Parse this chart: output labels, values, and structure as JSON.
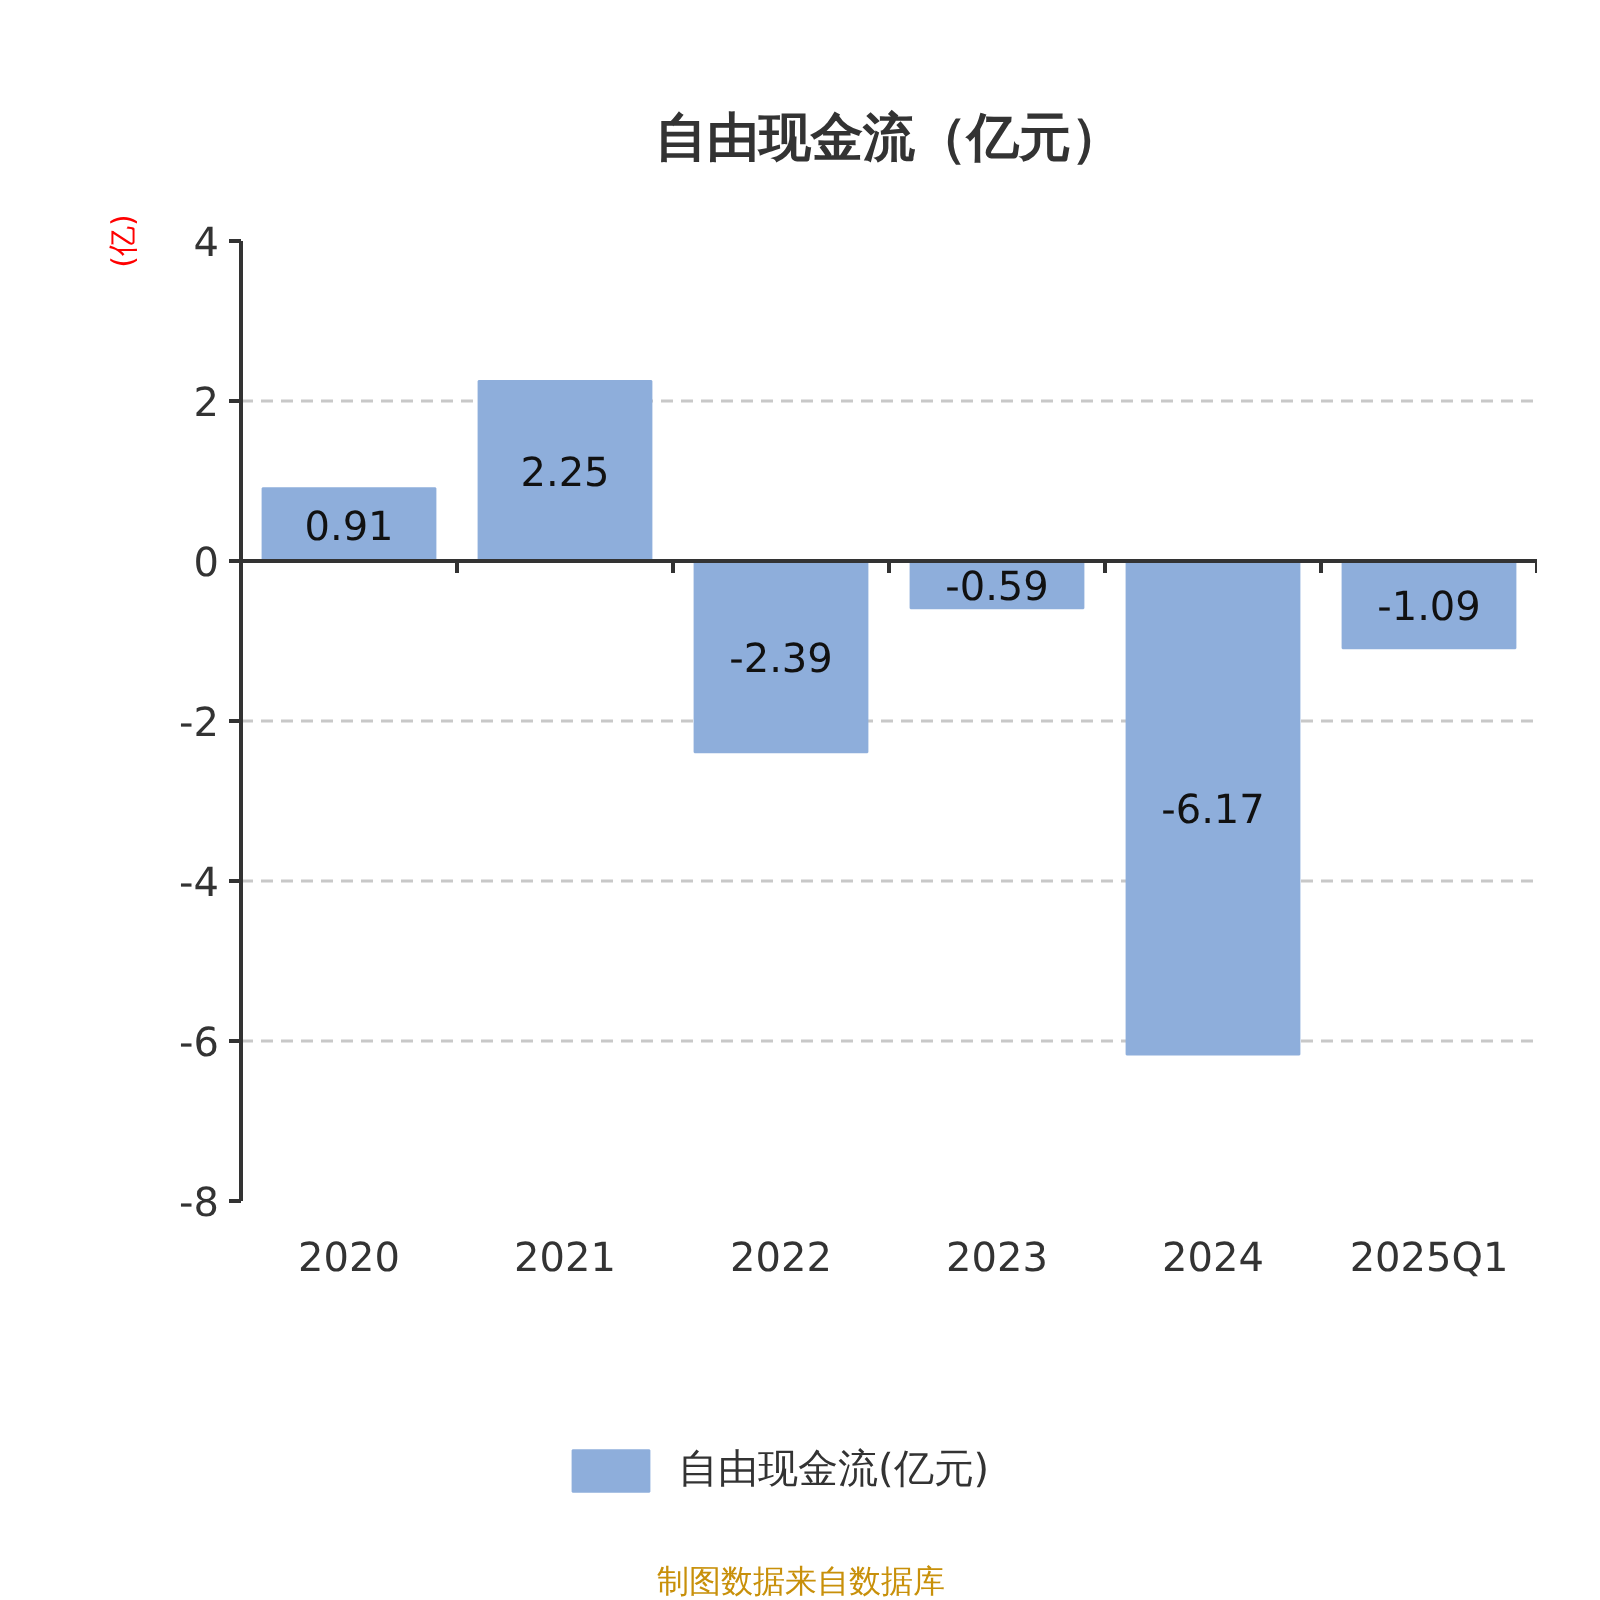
{
  "chart_data": {
    "type": "bar",
    "title": "自由现金流（亿元）",
    "ylabel": "(亿)",
    "categories": [
      "2020",
      "2021",
      "2022",
      "2023",
      "2024",
      "2025Q1"
    ],
    "series": [
      {
        "name": "自由现金流(亿元)",
        "color": "#8eaedb",
        "values": [
          0.91,
          2.25,
          -2.39,
          -0.59,
          -6.17,
          -1.09
        ]
      }
    ],
    "ylim": [
      -8,
      4
    ],
    "yticks": [
      -8,
      -6,
      -4,
      -2,
      0,
      2,
      4
    ],
    "grid": "y",
    "legend": "bottom",
    "data_labels": true,
    "annotations": [
      "制图数据来自数据库"
    ]
  }
}
